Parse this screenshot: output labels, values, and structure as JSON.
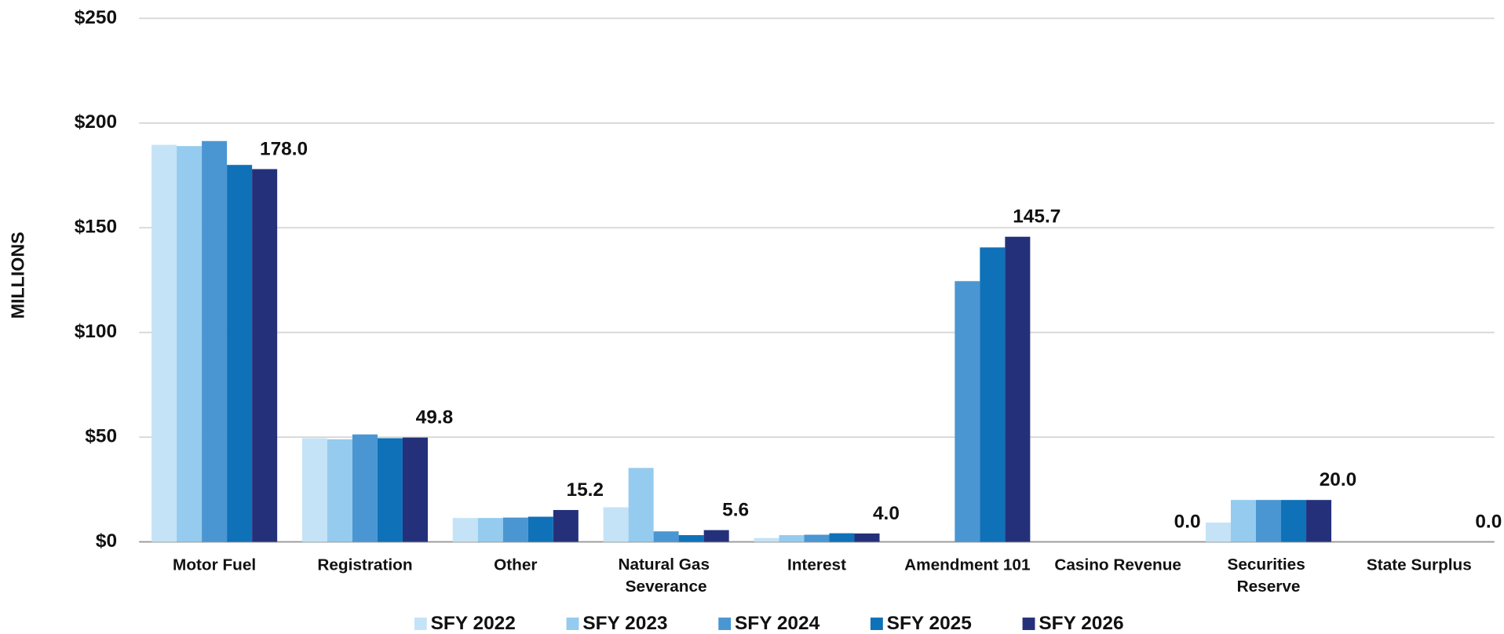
{
  "chart_data": {
    "type": "bar",
    "y_label": "MILLIONS",
    "categories": [
      "Motor Fuel",
      "Registration",
      "Other",
      "Natural Gas Severance",
      "Interest",
      "Amendment 101",
      "Casino Revenue",
      "Securities Reserve",
      "State Surplus"
    ],
    "series": [
      {
        "name": "SFY 2022",
        "color": "#c5e3f6",
        "values": [
          189.6,
          49.5,
          11.4,
          16.5,
          1.8,
          0,
          0,
          9.2,
          0
        ]
      },
      {
        "name": "SFY 2023",
        "color": "#95cbee",
        "values": [
          189,
          49,
          11.4,
          35.3,
          3.2,
          0,
          0,
          20,
          0
        ]
      },
      {
        "name": "SFY 2024",
        "color": "#4a96d2",
        "values": [
          191.4,
          51.3,
          11.6,
          5,
          3.4,
          124.5,
          0,
          20,
          0
        ]
      },
      {
        "name": "SFY 2025",
        "color": "#0f71b8",
        "values": [
          180,
          49.5,
          12,
          3.2,
          4.1,
          140.6,
          0,
          20,
          0
        ]
      },
      {
        "name": "SFY 2026",
        "color": "#24317a",
        "values": [
          178.0,
          49.8,
          15.2,
          5.6,
          4.0,
          145.7,
          0,
          20.0,
          0
        ],
        "value_labels": [
          "178.0",
          "49.8",
          "15.2",
          "5.6",
          "4.0",
          "145.7",
          "0.0",
          "20.0",
          "0.0"
        ]
      }
    ],
    "ylim": [
      0,
      250
    ],
    "yticks": [
      {
        "value": 0,
        "label": "$0"
      },
      {
        "value": 50,
        "label": "$50"
      },
      {
        "value": 100,
        "label": "$100"
      },
      {
        "value": 150,
        "label": "$150"
      },
      {
        "value": 200,
        "label": "$200"
      },
      {
        "value": 250,
        "label": "$250"
      }
    ],
    "grid": true,
    "legend": "bottom"
  }
}
